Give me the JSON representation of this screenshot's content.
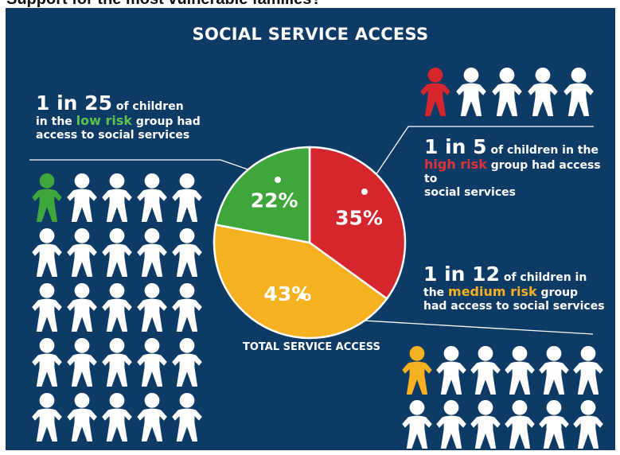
{
  "page_heading": "Support for the most vulnerable families?",
  "title": "SOCIAL SERVICE ACCESS",
  "colors": {
    "background": "#0e3a66",
    "low": "#3fa63c",
    "high": "#d4262c",
    "medium": "#f5b120",
    "figure": "#ffffff"
  },
  "callouts": {
    "low": {
      "big": "1 in 25",
      "pre": " of children",
      "line2_pre": "in the ",
      "hl": "low risk",
      "line2_post": " group had",
      "line3": "access to social services"
    },
    "high": {
      "big": "1 in 5",
      "pre": " of children in the",
      "hl": "high risk",
      "line2_post": " group had access to",
      "line3": "social services"
    },
    "medium": {
      "big": "1 in 12",
      "pre": " of children in",
      "line2_pre": "the ",
      "hl": "medium risk",
      "line2_post": " group",
      "line3": "had access to social services"
    }
  },
  "pie_caption": "TOTAL SERVICE ACCESS",
  "icons": {
    "figure": "child-figure-icon"
  },
  "chart_data": {
    "type": "pie",
    "title": "TOTAL SERVICE ACCESS",
    "slices": [
      {
        "label": "35%",
        "value": 35,
        "group": "high risk",
        "color": "#d4262c"
      },
      {
        "label": "43%",
        "value": 43,
        "group": "medium risk",
        "color": "#f5b120"
      },
      {
        "label": "22%",
        "value": 22,
        "group": "low risk",
        "color": "#3fa63c"
      }
    ]
  }
}
